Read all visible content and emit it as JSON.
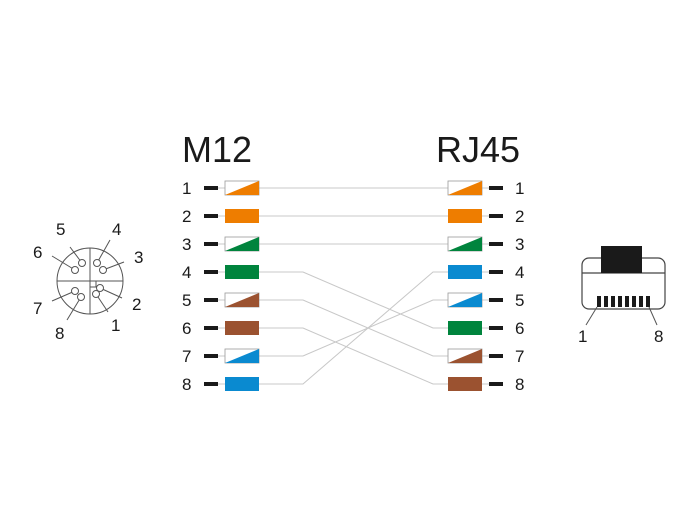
{
  "left_connector": {
    "title": "M12",
    "face_pin_labels": [
      "1",
      "2",
      "3",
      "4",
      "5",
      "6",
      "7",
      "8"
    ]
  },
  "right_connector": {
    "title": "RJ45",
    "plug_labels": {
      "first": "1",
      "last": "8"
    }
  },
  "colors": {
    "orange": "#ee7d00",
    "green": "#00843d",
    "blue": "#0a8ad0",
    "brown": "#9b5230",
    "wire": "#c8c8c8",
    "dash": "#1a1a1a"
  },
  "wires": [
    {
      "m12_pin": "1",
      "rj45_pin": "1",
      "color": "orange",
      "striped": true
    },
    {
      "m12_pin": "2",
      "rj45_pin": "2",
      "color": "orange",
      "striped": false
    },
    {
      "m12_pin": "3",
      "rj45_pin": "3",
      "color": "green",
      "striped": true
    },
    {
      "m12_pin": "4",
      "rj45_pin": "6",
      "color": "green",
      "striped": false
    },
    {
      "m12_pin": "5",
      "rj45_pin": "7",
      "color": "brown",
      "striped": true
    },
    {
      "m12_pin": "6",
      "rj45_pin": "8",
      "color": "brown",
      "striped": false
    },
    {
      "m12_pin": "7",
      "rj45_pin": "5",
      "color": "blue",
      "striped": true
    },
    {
      "m12_pin": "8",
      "rj45_pin": "4",
      "color": "blue",
      "striped": false
    }
  ]
}
